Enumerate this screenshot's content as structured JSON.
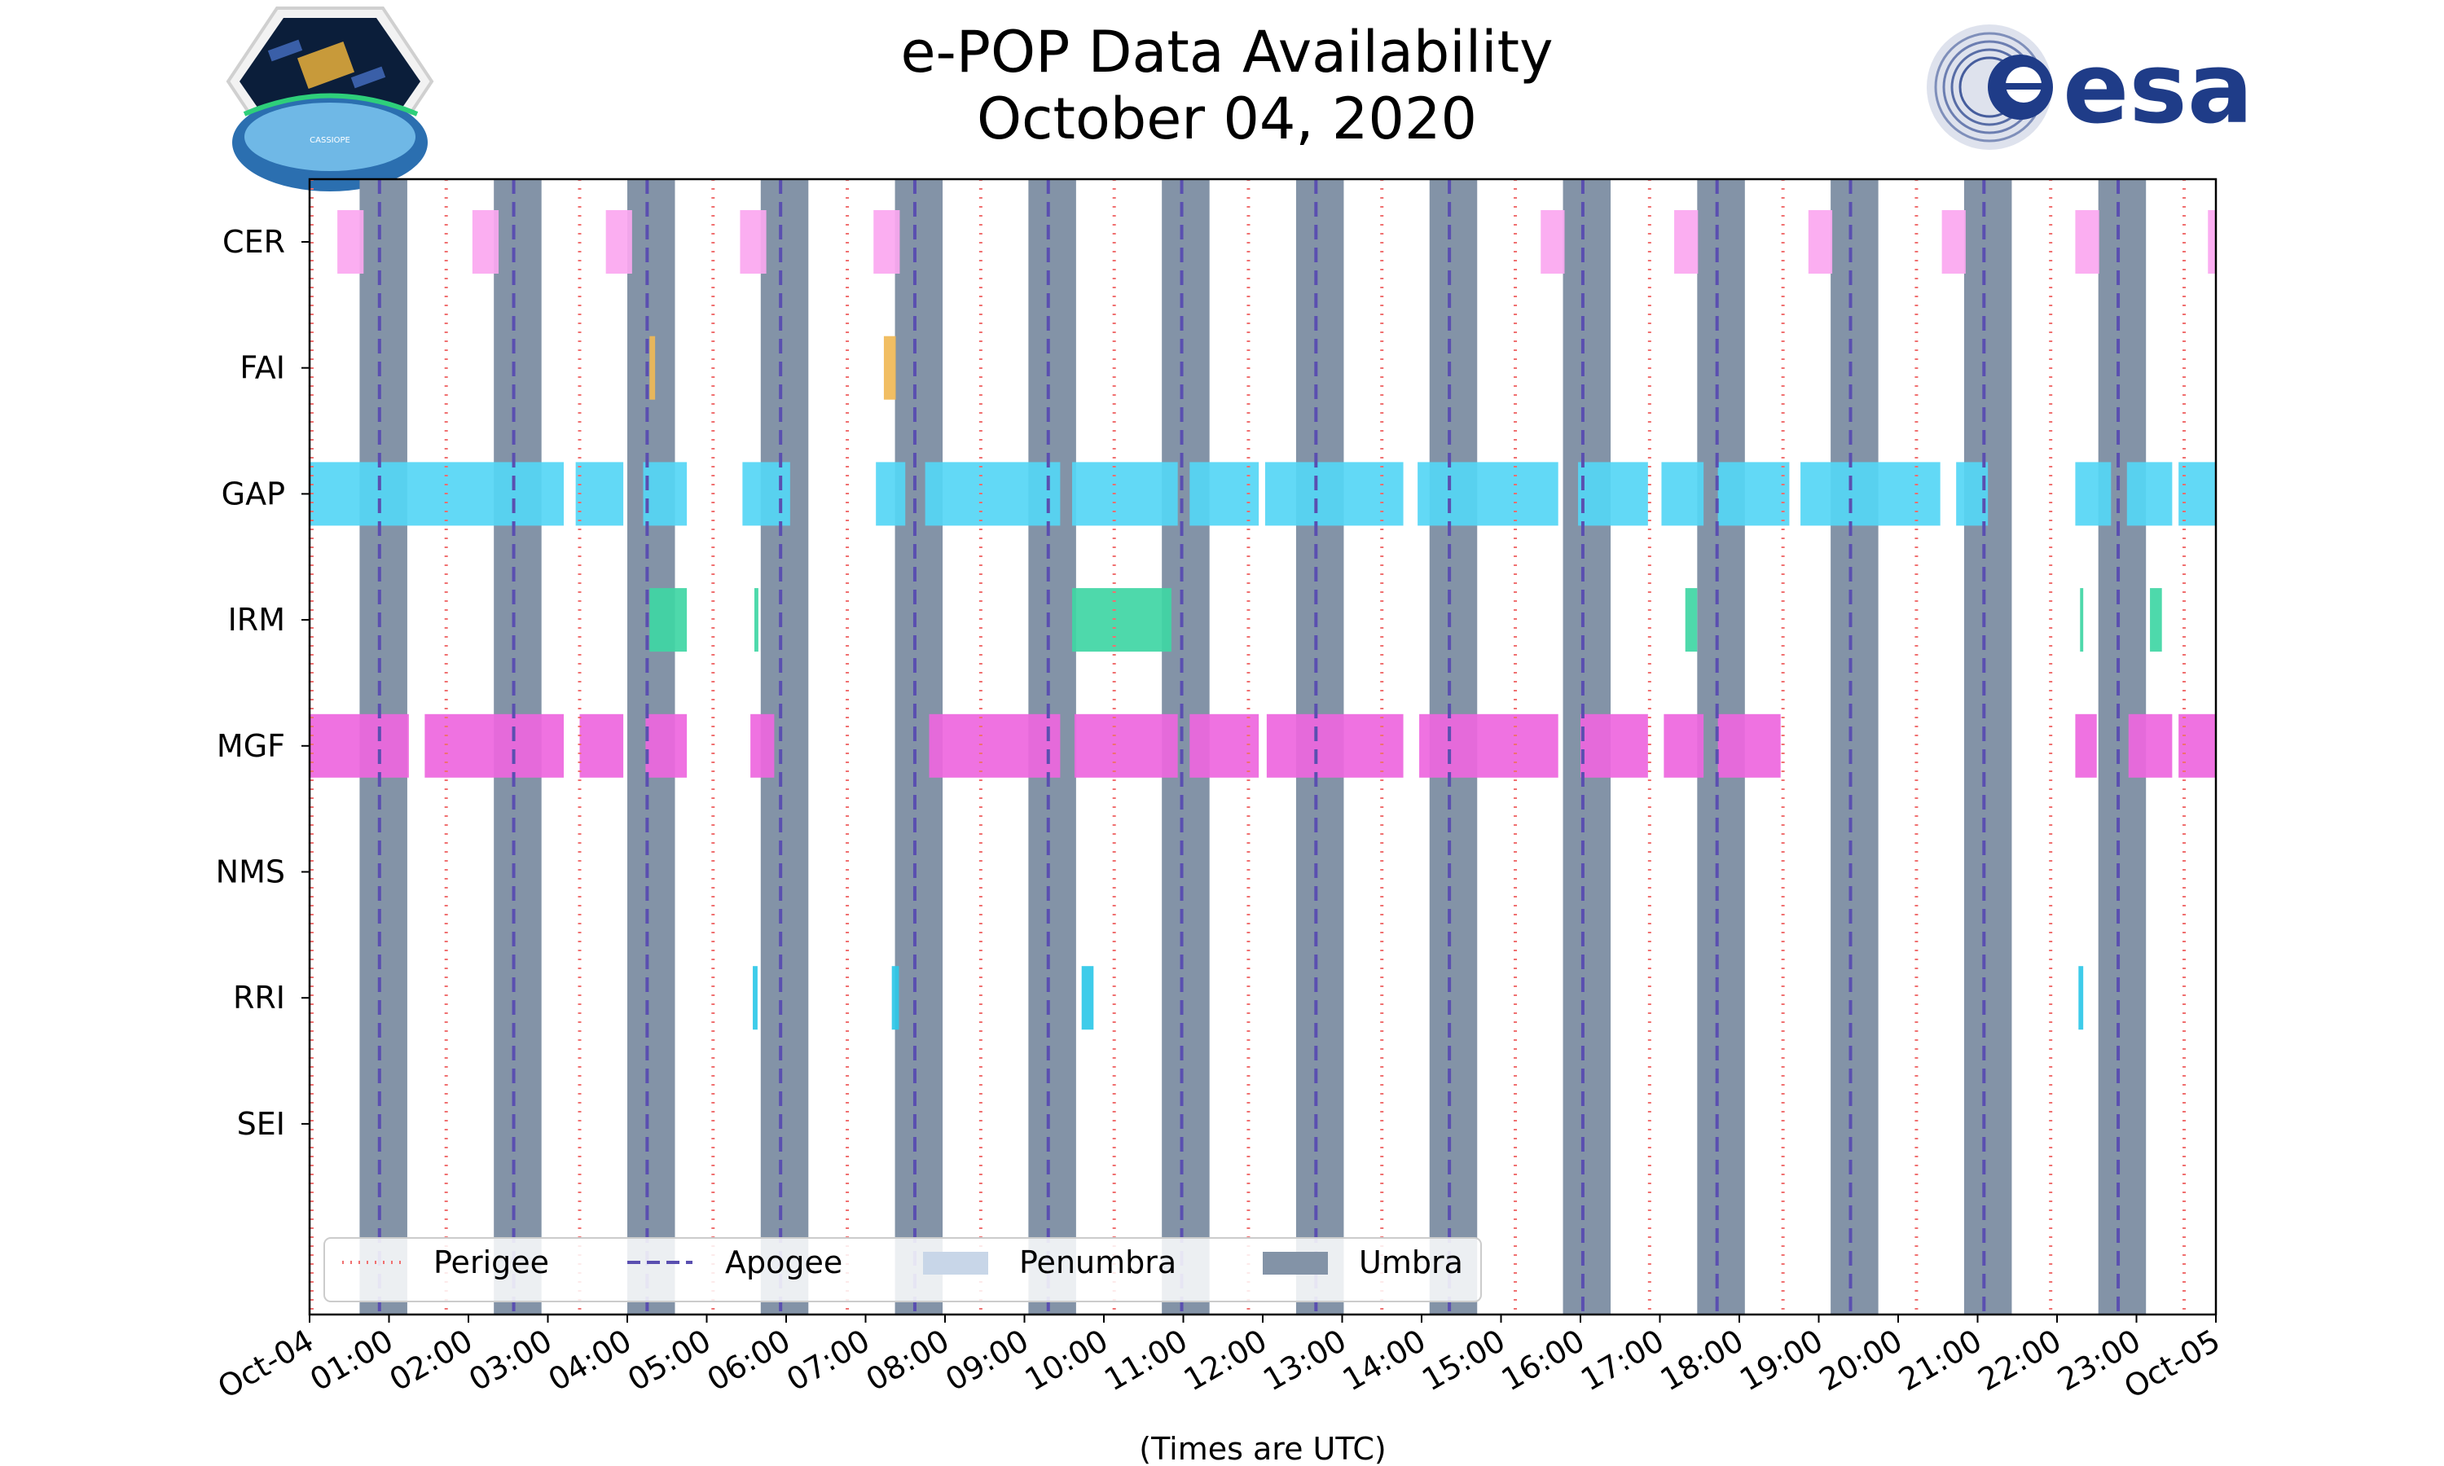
{
  "logos": {
    "mission_badge_text": "CASSIOPE",
    "agency_logo_text": "esa",
    "agency_color": "#1f3c88"
  },
  "colors": {
    "perigee": "#f07070",
    "apogee": "#5a4fb0",
    "penumbra": "#c8d6e8",
    "umbra": "#8393a7",
    "CER": "#fba7f0",
    "FAI": "#f0b856",
    "GAP": "#55d6f5",
    "IRM": "#3fd6a4",
    "MGF": "#ee66de",
    "RRI": "#2ec8e8"
  },
  "chart_data": {
    "type": "timeline",
    "title": [
      "e-POP Data Availability",
      "October 04, 2020"
    ],
    "xlabel": "(Times are UTC)",
    "xlim": [
      0,
      24
    ],
    "x_tick_values": [
      0,
      1,
      2,
      3,
      4,
      5,
      6,
      7,
      8,
      9,
      10,
      11,
      12,
      13,
      14,
      15,
      16,
      17,
      18,
      19,
      20,
      21,
      22,
      23,
      24
    ],
    "x_tick_labels": [
      "Oct-04",
      "01:00",
      "02:00",
      "03:00",
      "04:00",
      "05:00",
      "06:00",
      "07:00",
      "08:00",
      "09:00",
      "10:00",
      "11:00",
      "12:00",
      "13:00",
      "14:00",
      "15:00",
      "16:00",
      "17:00",
      "18:00",
      "19:00",
      "20:00",
      "21:00",
      "22:00",
      "23:00",
      "Oct-05"
    ],
    "instruments": [
      "CER",
      "FAI",
      "GAP",
      "IRM",
      "MGF",
      "NMS",
      "RRI",
      "SEI"
    ],
    "perigee_hours": [
      0.03,
      1.72,
      3.4,
      5.08,
      6.77,
      8.45,
      10.13,
      11.82,
      13.5,
      15.18,
      16.87,
      18.55,
      20.23,
      21.92,
      23.6
    ],
    "apogee_hours": [
      0.88,
      2.57,
      4.25,
      5.93,
      7.62,
      9.3,
      10.98,
      12.67,
      14.35,
      16.03,
      17.72,
      19.4,
      21.08,
      22.77
    ],
    "umbra_intervals": [
      [
        0.63,
        1.23
      ],
      [
        2.32,
        2.92
      ],
      [
        4.0,
        4.6
      ],
      [
        5.68,
        6.28
      ],
      [
        7.37,
        7.97
      ],
      [
        9.05,
        9.65
      ],
      [
        10.73,
        11.33
      ],
      [
        12.42,
        13.02
      ],
      [
        14.1,
        14.7
      ],
      [
        15.78,
        16.38
      ],
      [
        17.47,
        18.07
      ],
      [
        19.15,
        19.75
      ],
      [
        20.83,
        21.43
      ],
      [
        22.52,
        23.12
      ]
    ],
    "penumbra_intervals": [],
    "availability": {
      "CER": [
        [
          0.35,
          0.68
        ],
        [
          2.05,
          2.38
        ],
        [
          3.73,
          4.06
        ],
        [
          5.42,
          5.75
        ],
        [
          7.1,
          7.43
        ],
        [
          15.5,
          15.8
        ],
        [
          17.18,
          17.48
        ],
        [
          18.87,
          19.17
        ],
        [
          20.55,
          20.85
        ],
        [
          22.23,
          22.53
        ],
        [
          23.9,
          24.0
        ]
      ],
      "FAI": [
        [
          4.28,
          4.35
        ],
        [
          7.23,
          7.38
        ]
      ],
      "GAP": [
        [
          0.0,
          3.2
        ],
        [
          3.35,
          3.95
        ],
        [
          4.2,
          4.75
        ],
        [
          5.45,
          6.05
        ],
        [
          7.13,
          7.5
        ],
        [
          7.75,
          9.45
        ],
        [
          9.6,
          10.93
        ],
        [
          11.08,
          11.95
        ],
        [
          12.03,
          13.77
        ],
        [
          13.95,
          15.72
        ],
        [
          15.97,
          16.85
        ],
        [
          17.02,
          17.55
        ],
        [
          17.73,
          18.63
        ],
        [
          18.77,
          20.53
        ],
        [
          20.73,
          21.13
        ],
        [
          22.23,
          22.68
        ],
        [
          22.88,
          23.45
        ],
        [
          23.53,
          24.0
        ]
      ],
      "IRM": [
        [
          4.28,
          4.75
        ],
        [
          5.6,
          5.65
        ],
        [
          9.6,
          10.85
        ],
        [
          17.32,
          17.47
        ],
        [
          22.29,
          22.33
        ],
        [
          23.17,
          23.32
        ]
      ],
      "MGF": [
        [
          0.0,
          1.25
        ],
        [
          1.45,
          3.2
        ],
        [
          3.4,
          3.95
        ],
        [
          4.23,
          4.75
        ],
        [
          5.55,
          5.85
        ],
        [
          7.8,
          9.45
        ],
        [
          9.63,
          10.93
        ],
        [
          11.08,
          11.95
        ],
        [
          12.05,
          13.77
        ],
        [
          13.97,
          15.72
        ],
        [
          16.0,
          16.85
        ],
        [
          17.05,
          17.55
        ],
        [
          17.73,
          18.52
        ],
        [
          22.23,
          22.5
        ],
        [
          22.9,
          23.45
        ],
        [
          23.53,
          24.0
        ]
      ],
      "NMS": [],
      "RRI": [
        [
          5.58,
          5.64
        ],
        [
          7.33,
          7.42
        ],
        [
          9.72,
          9.87
        ],
        [
          22.27,
          22.33
        ]
      ],
      "SEI": []
    },
    "legend": {
      "placement": "lower-left",
      "entries": [
        "Perigee",
        "Apogee",
        "Penumbra",
        "Umbra"
      ]
    }
  }
}
